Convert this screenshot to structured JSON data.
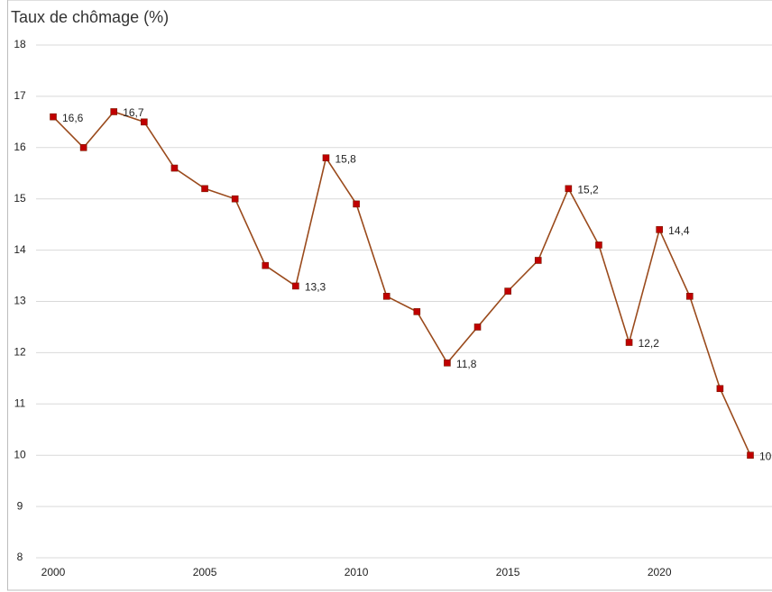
{
  "chart_data": {
    "type": "line",
    "title": "Taux de chômage (%)",
    "x": [
      2000,
      2001,
      2002,
      2003,
      2004,
      2005,
      2006,
      2007,
      2008,
      2009,
      2010,
      2011,
      2012,
      2013,
      2014,
      2015,
      2016,
      2017,
      2018,
      2019,
      2020,
      2021,
      2022,
      2023
    ],
    "series": [
      {
        "name": "Taux de chômage",
        "color": "#9a4a1c",
        "marker_color": "#c00000",
        "values": [
          16.6,
          16.0,
          16.7,
          16.5,
          15.6,
          15.2,
          15.0,
          13.7,
          13.3,
          15.8,
          14.9,
          13.1,
          12.8,
          11.8,
          12.5,
          13.2,
          13.8,
          15.2,
          14.1,
          12.2,
          14.4,
          13.1,
          11.3,
          10.0
        ],
        "value_labels": [
          "16,6",
          null,
          "16,7",
          null,
          null,
          null,
          null,
          null,
          "13,3",
          "15,8",
          null,
          null,
          null,
          "11,8",
          null,
          null,
          null,
          "15,2",
          null,
          "12,2",
          "14,4",
          null,
          null,
          "10"
        ]
      }
    ],
    "xlim": [
      2000,
      2023
    ],
    "xticks": [
      2000,
      2005,
      2010,
      2015,
      2020
    ],
    "ylim": [
      8,
      18
    ],
    "yticks": [
      8,
      9,
      10,
      11,
      12,
      13,
      14,
      15,
      16,
      17,
      18
    ],
    "grid": true
  }
}
